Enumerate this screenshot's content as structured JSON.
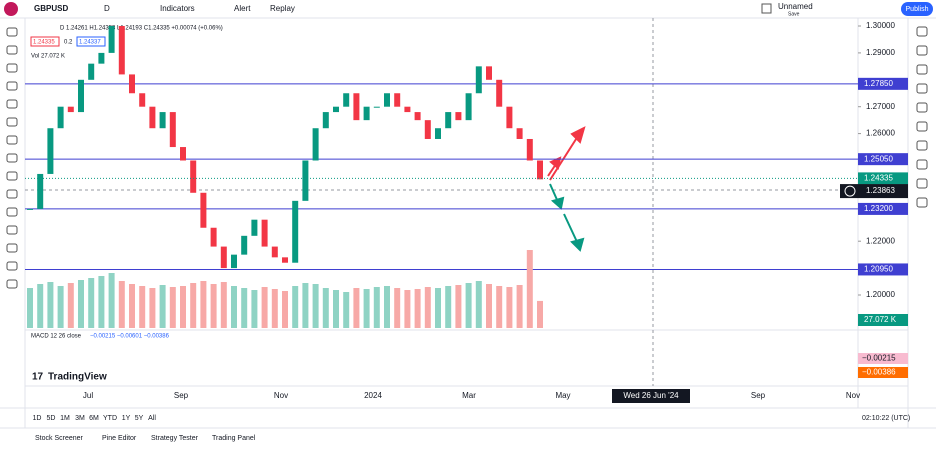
{
  "header": {
    "symbol": "GBPUSD",
    "interval": "D",
    "indicators": "Indicators",
    "alert": "Alert",
    "replay": "Replay",
    "layout_name": "Unnamed",
    "save": "Save",
    "publish": "Publish"
  },
  "legend": {
    "ohlc": "D 1.24261  H1.24353  L1.24193  C1.24335  +0.00074 (+0.06%)",
    "bid": "1.24335",
    "spread": "0.2",
    "ask": "1.24337",
    "volume": "Vol  27.072 K"
  },
  "chart": {
    "closes": [
      1.232,
      1.245,
      1.262,
      1.27,
      1.268,
      1.28,
      1.286,
      1.29,
      1.3,
      1.282,
      1.275,
      1.27,
      1.262,
      1.268,
      1.255,
      1.25,
      1.238,
      1.225,
      1.218,
      1.21,
      1.215,
      1.222,
      1.228,
      1.218,
      1.214,
      1.212,
      1.235,
      1.25,
      1.262,
      1.268,
      1.27,
      1.275,
      1.265,
      1.27,
      1.27,
      1.275,
      1.27,
      1.268,
      1.265,
      1.258,
      1.262,
      1.268,
      1.265,
      1.275,
      1.285,
      1.28,
      1.27,
      1.262,
      1.258,
      1.25,
      1.243
    ],
    "volumes": [
      40,
      44,
      46,
      42,
      45,
      48,
      50,
      52,
      55,
      47,
      44,
      42,
      40,
      43,
      41,
      42,
      45,
      47,
      44,
      46,
      42,
      40,
      38,
      41,
      39,
      37,
      42,
      45,
      44,
      40,
      38,
      36,
      40,
      39,
      41,
      42,
      40,
      38,
      39,
      41,
      40,
      42,
      43,
      45,
      47,
      44,
      42,
      41,
      43,
      78,
      27.072
    ],
    "ylim": [
      1.195,
      1.303
    ],
    "price_ticks": [
      {
        "value": 1.3,
        "label": "1.30000"
      },
      {
        "value": 1.29,
        "label": "1.29000"
      },
      {
        "value": 1.27,
        "label": "1.27000"
      },
      {
        "value": 1.26,
        "label": "1.26000"
      },
      {
        "value": 1.22,
        "label": "1.22000"
      },
      {
        "value": 1.2,
        "label": "1.20000"
      }
    ],
    "levels": [
      {
        "value": 1.2785,
        "label": "1.27850"
      },
      {
        "value": 1.2505,
        "label": "1.25050"
      },
      {
        "value": 1.232,
        "label": "1.23200"
      },
      {
        "value": 1.2095,
        "label": "1.20950"
      }
    ],
    "last_price": {
      "value": 1.24335,
      "label": "1.24335"
    },
    "cursor_price": {
      "value": 1.23863,
      "label": "1.23863"
    },
    "volume_label": "27.072 K",
    "time_labels": [
      "Jul",
      "Sep",
      "Nov",
      "2024",
      "Mar",
      "May",
      "Wed 26 Jun '24",
      "Sep",
      "Nov"
    ]
  },
  "macd": {
    "title": "MACD 12 26 close",
    "values": "−0.00215  −0.00601  −0.00386",
    "label_1": "−0.00215",
    "label_2": "−0.00386"
  },
  "footer": {
    "ranges": [
      "1D",
      "5D",
      "1M",
      "3M",
      "6M",
      "YTD",
      "1Y",
      "5Y",
      "All"
    ],
    "clock": "02:10:22 (UTC)",
    "tabs": [
      "Stock Screener",
      "Pine Editor",
      "Strategy Tester",
      "Trading Panel"
    ],
    "logo": "TradingView"
  }
}
